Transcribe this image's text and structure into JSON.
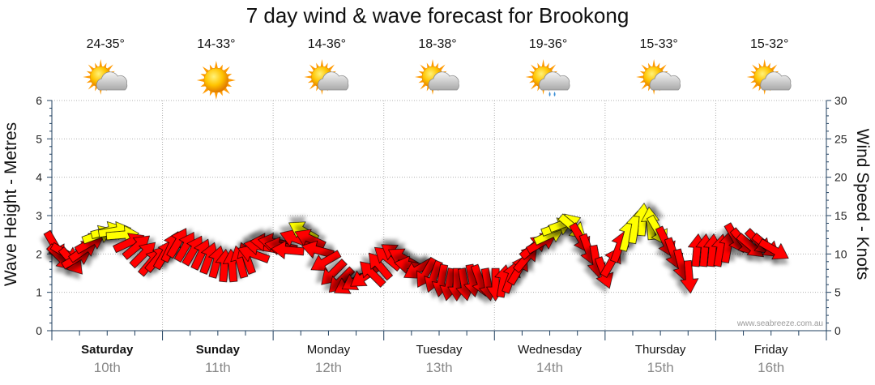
{
  "chart_data": {
    "type": "scatter",
    "title": "7 day wind & wave forecast for Brookong",
    "ylabel_left": "Wave Height - Metres",
    "ylabel_right": "Wind Speed - Knots",
    "ylim_left": [
      0,
      6
    ],
    "ylim_right": [
      0,
      30
    ],
    "yticks_left": [
      "0",
      "1",
      "2",
      "3",
      "4",
      "5",
      "6"
    ],
    "yticks_right": [
      "0",
      "5",
      "10",
      "15",
      "20",
      "25",
      "30"
    ],
    "watermark": "www.seabreeze.com.au",
    "colors": {
      "strong": "#ff0000",
      "moderate": "#ffff00",
      "outline": "#000000",
      "grid": "#aaaaaa",
      "axis": "#1f3f5f"
    },
    "days": [
      {
        "name": "Saturday",
        "date": "10th",
        "bold": true,
        "temp": "24-35°",
        "icon": "partly-cloudy-icon"
      },
      {
        "name": "Sunday",
        "date": "11th",
        "bold": true,
        "temp": "14-33°",
        "icon": "sunny-icon"
      },
      {
        "name": "Monday",
        "date": "12th",
        "bold": false,
        "temp": "14-36°",
        "icon": "partly-cloudy-icon"
      },
      {
        "name": "Tuesday",
        "date": "13th",
        "bold": false,
        "temp": "18-38°",
        "icon": "partly-cloudy-icon"
      },
      {
        "name": "Wednesday",
        "date": "14th",
        "bold": false,
        "temp": "19-36°",
        "icon": "showers-icon"
      },
      {
        "name": "Thursday",
        "date": "15th",
        "bold": false,
        "temp": "15-33°",
        "icon": "partly-cloudy-icon"
      },
      {
        "name": "Friday",
        "date": "16th",
        "bold": false,
        "temp": "15-32°",
        "icon": "partly-cloudy-icon"
      }
    ],
    "series": [
      {
        "x_unit": "days from start of Saturday",
        "arrow_direction_unit": "degrees of arrow pointing on screen (0 = right, 90 = up)",
        "points": [
          {
            "x": 0.03,
            "knots": 11.0,
            "dir": -60
          },
          {
            "x": 0.08,
            "knots": 9.5,
            "dir": -45
          },
          {
            "x": 0.13,
            "knots": 10.0,
            "dir": -30
          },
          {
            "x": 0.18,
            "knots": 9.0,
            "dir": -50
          },
          {
            "x": 0.23,
            "knots": 9.5,
            "dir": 30
          },
          {
            "x": 0.29,
            "knots": 10.5,
            "dir": 35
          },
          {
            "x": 0.35,
            "knots": 11.5,
            "dir": 30
          },
          {
            "x": 0.42,
            "knots": 12.5,
            "dir": 20
          },
          {
            "x": 0.5,
            "knots": 13.0,
            "dir": 15
          },
          {
            "x": 0.57,
            "knots": 13.0,
            "dir": 10
          },
          {
            "x": 0.64,
            "knots": 12.5,
            "dir": 5
          },
          {
            "x": 0.7,
            "knots": 11.5,
            "dir": 25
          },
          {
            "x": 0.77,
            "knots": 11.0,
            "dir": 40
          },
          {
            "x": 0.83,
            "knots": 10.0,
            "dir": 45
          },
          {
            "x": 0.9,
            "knots": 9.0,
            "dir": 50
          },
          {
            "x": 0.96,
            "knots": 9.5,
            "dir": 50
          },
          {
            "x": 1.02,
            "knots": 10.0,
            "dir": 60
          },
          {
            "x": 1.08,
            "knots": 11.0,
            "dir": 65
          },
          {
            "x": 1.14,
            "knots": 11.5,
            "dir": 60
          },
          {
            "x": 1.21,
            "knots": 11.0,
            "dir": 60
          },
          {
            "x": 1.28,
            "knots": 10.5,
            "dir": 60
          },
          {
            "x": 1.35,
            "knots": 10.0,
            "dir": 65
          },
          {
            "x": 1.42,
            "knots": 9.5,
            "dir": 70
          },
          {
            "x": 1.49,
            "knots": 9.0,
            "dir": 75
          },
          {
            "x": 1.56,
            "knots": 8.5,
            "dir": 85
          },
          {
            "x": 1.63,
            "knots": 8.5,
            "dir": 95
          },
          {
            "x": 1.7,
            "knots": 9.0,
            "dir": 105
          },
          {
            "x": 1.76,
            "knots": 9.5,
            "dir": 110
          },
          {
            "x": 1.82,
            "knots": 10.0,
            "dir": 160
          },
          {
            "x": 1.88,
            "knots": 11.0,
            "dir": 170
          },
          {
            "x": 1.94,
            "knots": 11.5,
            "dir": 175
          },
          {
            "x": 2.01,
            "knots": 11.5,
            "dir": 170
          },
          {
            "x": 2.07,
            "knots": 11.0,
            "dir": 170
          },
          {
            "x": 2.13,
            "knots": 10.5,
            "dir": 175
          },
          {
            "x": 2.2,
            "knots": 12.0,
            "dir": 160
          },
          {
            "x": 2.27,
            "knots": 13.0,
            "dir": 150
          },
          {
            "x": 2.33,
            "knots": 12.0,
            "dir": 155
          },
          {
            "x": 2.4,
            "knots": 10.5,
            "dir": 165
          },
          {
            "x": 2.47,
            "knots": 9.0,
            "dir": -150
          },
          {
            "x": 2.54,
            "knots": 7.5,
            "dir": -135
          },
          {
            "x": 2.61,
            "knots": 6.5,
            "dir": -135
          },
          {
            "x": 2.68,
            "knots": 6.0,
            "dir": -150
          },
          {
            "x": 2.75,
            "knots": 6.5,
            "dir": -150
          },
          {
            "x": 2.82,
            "knots": 7.0,
            "dir": -145
          },
          {
            "x": 2.89,
            "knots": 7.5,
            "dir": 135
          },
          {
            "x": 2.96,
            "knots": 8.5,
            "dir": 130
          },
          {
            "x": 3.03,
            "knots": 9.5,
            "dir": 140
          },
          {
            "x": 3.1,
            "knots": 10.0,
            "dir": 145
          },
          {
            "x": 3.17,
            "knots": 9.5,
            "dir": 150
          },
          {
            "x": 3.24,
            "knots": 8.5,
            "dir": 170
          },
          {
            "x": 3.31,
            "knots": 8.0,
            "dir": -150
          },
          {
            "x": 3.38,
            "knots": 7.5,
            "dir": -120
          },
          {
            "x": 3.45,
            "knots": 7.0,
            "dir": -110
          },
          {
            "x": 3.52,
            "knots": 6.5,
            "dir": -100
          },
          {
            "x": 3.59,
            "knots": 6.0,
            "dir": -100
          },
          {
            "x": 3.66,
            "knots": 6.0,
            "dir": -90
          },
          {
            "x": 3.73,
            "knots": 6.0,
            "dir": -80
          },
          {
            "x": 3.8,
            "knots": 6.5,
            "dir": -80
          },
          {
            "x": 3.87,
            "knots": 6.5,
            "dir": -70
          },
          {
            "x": 3.94,
            "knots": 6.0,
            "dir": -80
          },
          {
            "x": 4.01,
            "knots": 6.0,
            "dir": -90
          },
          {
            "x": 4.08,
            "knots": 6.5,
            "dir": 80
          },
          {
            "x": 4.15,
            "knots": 7.0,
            "dir": 70
          },
          {
            "x": 4.22,
            "knots": 8.0,
            "dir": 60
          },
          {
            "x": 4.29,
            "knots": 9.5,
            "dir": 50
          },
          {
            "x": 4.36,
            "knots": 11.0,
            "dir": 40
          },
          {
            "x": 4.43,
            "knots": 11.5,
            "dir": 30
          },
          {
            "x": 4.5,
            "knots": 12.5,
            "dir": 25
          },
          {
            "x": 4.57,
            "knots": 13.5,
            "dir": 20
          },
          {
            "x": 4.64,
            "knots": 14.0,
            "dir": 20
          },
          {
            "x": 4.71,
            "knots": 13.5,
            "dir": -40
          },
          {
            "x": 4.78,
            "knots": 12.0,
            "dir": -60
          },
          {
            "x": 4.85,
            "knots": 10.5,
            "dir": -70
          },
          {
            "x": 4.92,
            "knots": 9.0,
            "dir": -80
          },
          {
            "x": 4.99,
            "knots": 7.5,
            "dir": -70
          },
          {
            "x": 5.06,
            "knots": 9.0,
            "dir": 60
          },
          {
            "x": 5.13,
            "knots": 11.0,
            "dir": 70
          },
          {
            "x": 5.2,
            "knots": 12.5,
            "dir": 75
          },
          {
            "x": 5.27,
            "knots": 13.5,
            "dir": 80
          },
          {
            "x": 5.34,
            "knots": 14.5,
            "dir": 85
          },
          {
            "x": 5.41,
            "knots": 14.0,
            "dir": 95
          },
          {
            "x": 5.48,
            "knots": 13.0,
            "dir": -60
          },
          {
            "x": 5.55,
            "knots": 11.5,
            "dir": -65
          },
          {
            "x": 5.62,
            "knots": 10.0,
            "dir": -70
          },
          {
            "x": 5.69,
            "knots": 8.5,
            "dir": -75
          },
          {
            "x": 5.76,
            "knots": 7.0,
            "dir": -85
          },
          {
            "x": 5.83,
            "knots": 10.5,
            "dir": 85
          },
          {
            "x": 5.9,
            "knots": 10.5,
            "dir": 85
          },
          {
            "x": 5.97,
            "knots": 10.5,
            "dir": 85
          },
          {
            "x": 6.04,
            "knots": 10.5,
            "dir": 80
          },
          {
            "x": 6.11,
            "knots": 11.0,
            "dir": 80
          },
          {
            "x": 6.18,
            "knots": 12.0,
            "dir": -60
          },
          {
            "x": 6.25,
            "knots": 11.5,
            "dir": -50
          },
          {
            "x": 6.32,
            "knots": 11.0,
            "dir": -40
          },
          {
            "x": 6.39,
            "knots": 11.5,
            "dir": -45
          },
          {
            "x": 6.46,
            "knots": 11.0,
            "dir": -40
          },
          {
            "x": 6.53,
            "knots": 10.5,
            "dir": -30
          }
        ]
      }
    ]
  }
}
